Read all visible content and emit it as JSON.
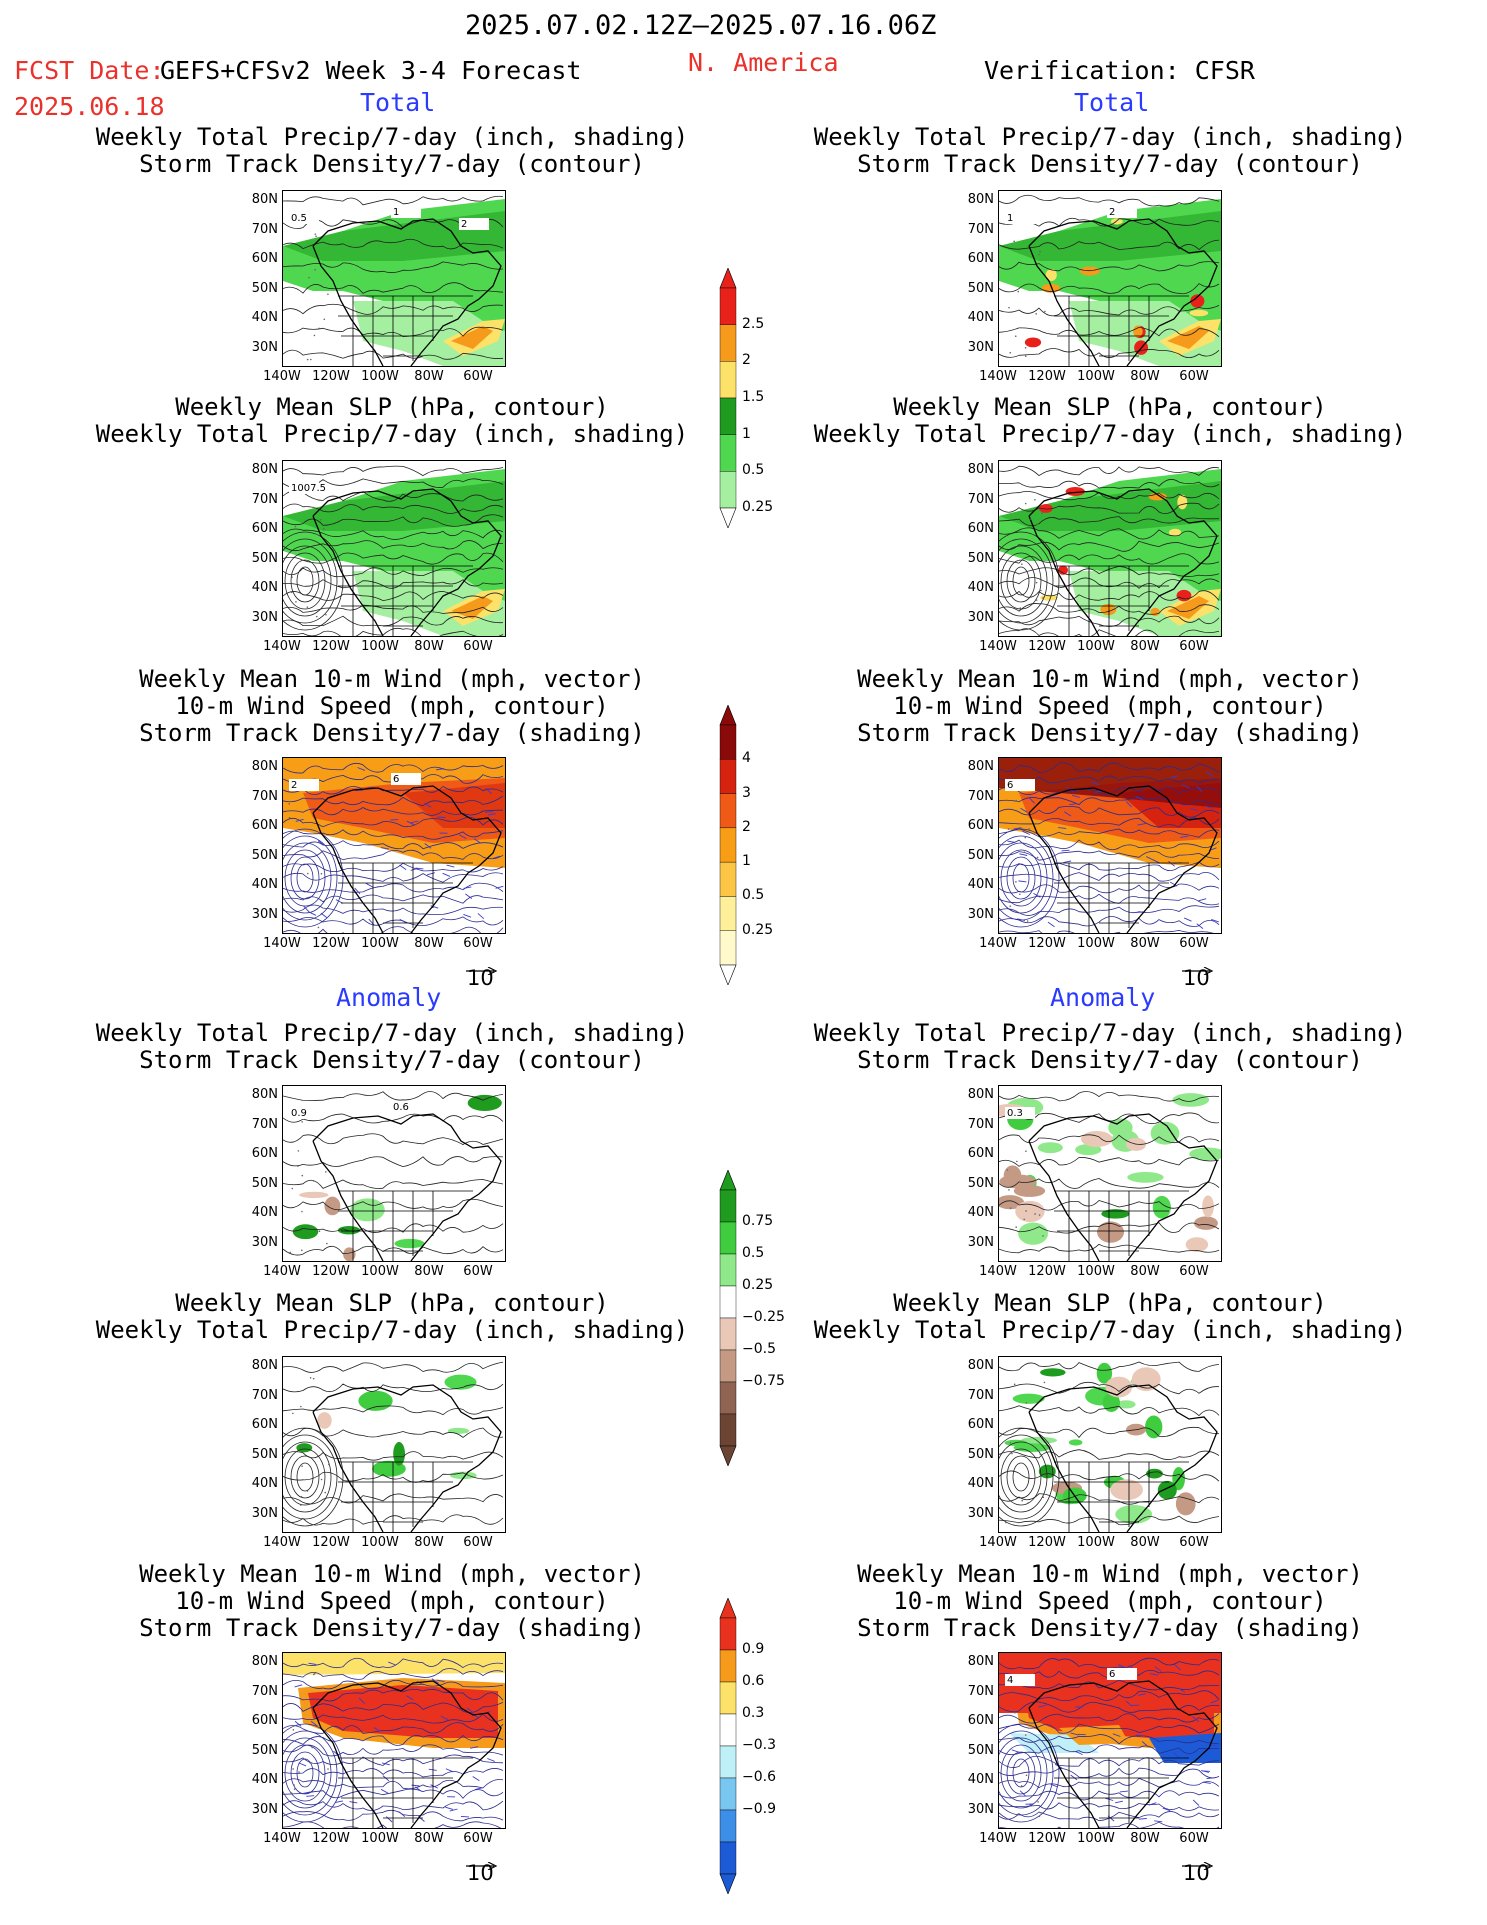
{
  "header": {
    "date_range": "2025.07.02.12Z—2025.07.16.06Z",
    "fcst_date_label": "FCST Date:",
    "model_label": "GEFS+CFSv2 Week 3-4 Forecast",
    "fcst_date_value": "2025.06.18",
    "region": "N. America",
    "verification": "Verification: CFSR"
  },
  "sections": {
    "total_left": "Total",
    "total_right": "Total",
    "anomaly_left": "Anomaly",
    "anomaly_right": "Anomaly"
  },
  "titles": {
    "precip_storm": [
      "Weekly Total Precip/7-day (inch, shading)",
      "Storm Track Density/7-day (contour)"
    ],
    "slp_precip": [
      "Weekly Mean SLP (hPa, contour)",
      "Weekly Total Precip/7-day (inch, shading)"
    ],
    "wind_storm": [
      "Weekly Mean 10-m Wind (mph, vector)",
      "10-m Wind Speed (mph, contour)",
      "Storm Track Density/7-day (shading)"
    ]
  },
  "axes": {
    "lat_labels": [
      "80N",
      "70N",
      "60N",
      "50N",
      "40N",
      "30N"
    ],
    "lon_labels": [
      "140W",
      "120W",
      "100W",
      "80W",
      "60W"
    ]
  },
  "vector_ref": "10",
  "colorbars": {
    "precip_total": {
      "labels": [
        "2.5",
        "2",
        "1.5",
        "1",
        "0.5",
        "0.25"
      ],
      "colors": [
        "#e8221a",
        "#f59a1b",
        "#fde26a",
        "#1f9c1f",
        "#4fd84f",
        "#a4f0a0"
      ]
    },
    "storm_total": {
      "labels": [
        "4",
        "3",
        "2",
        "1",
        "0.5",
        "0.25"
      ],
      "colors": [
        "#8a0a0a",
        "#d5230f",
        "#ef5a17",
        "#f79d16",
        "#fbc546",
        "#fef09a",
        "#fff9cc"
      ]
    },
    "precip_anom": {
      "labels": [
        "0.75",
        "0.5",
        "0.25",
        "−0.25",
        "−0.5",
        "−0.75"
      ],
      "colors": [
        "#1f9c1f",
        "#3fcc3f",
        "#8fe98a",
        "#ffffff",
        "#e9c8b8",
        "#c49a85",
        "#8f6452",
        "#6b4434"
      ]
    },
    "storm_anom": {
      "labels": [
        "0.9",
        "0.6",
        "0.3",
        "−0.3",
        "−0.6",
        "−0.9"
      ],
      "colors": [
        "#e8321f",
        "#f59a1b",
        "#fde26a",
        "#ffffff",
        "#bfeff7",
        "#79c6f0",
        "#3d8ee6",
        "#1d5bd6"
      ]
    }
  },
  "contour_labels": {
    "p1_left": [
      "0.5",
      "1",
      "2"
    ],
    "p1_right": [
      "1",
      "2"
    ],
    "p2_left": [
      "1007.5"
    ],
    "p3_left": [
      "2",
      "6"
    ],
    "p3_right": [
      "6"
    ],
    "p4_left": [
      "0.9",
      "0.6"
    ],
    "p4_right": [
      "0.3"
    ],
    "p6_right": [
      "4",
      "6"
    ]
  },
  "colors": {
    "header_red": "#e8322b",
    "section_blue": "#2a3bff",
    "wind_blue": "#3a3acc"
  }
}
